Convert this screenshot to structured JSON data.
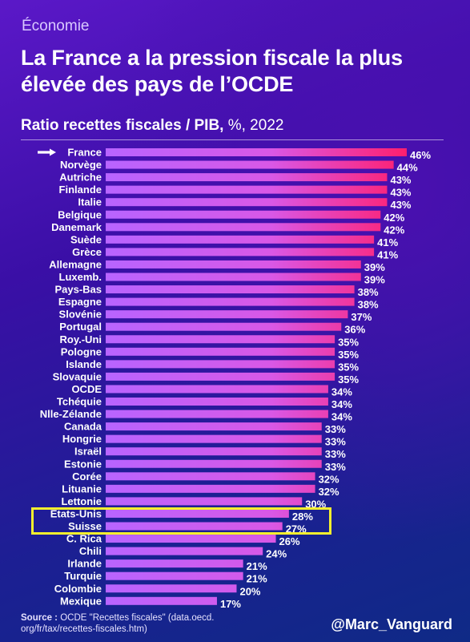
{
  "header": {
    "category": "Économie",
    "title": "La France a la pression fiscale la plus élevée des pays de l’OCDE",
    "subtitle_bold": "Ratio recettes fiscales / PIB,",
    "subtitle_rest": " %, 2022"
  },
  "footer": {
    "source_label": "Source :",
    "source_text": " OCDE \"Recettes fiscales\" (data.oecd. org/fr/tax/recettes-fiscales.htm)",
    "handle": "@Marc_Vanguard"
  },
  "colors": {
    "bar_start": "#b864ff",
    "bar_end": "#ff1f6e",
    "highlight": "#f5ef2e"
  },
  "icons": {
    "arrow": "right-arrow-icon"
  },
  "chart_data": {
    "type": "bar",
    "orientation": "horizontal",
    "title": "Ratio recettes fiscales / PIB, %, 2022",
    "unit": "%",
    "highlighted_first": "France",
    "highlighted_boxed": [
      "États-Unis",
      "Suisse"
    ],
    "categories": [
      "France",
      "Norvège",
      "Autriche",
      "Finlande",
      "Italie",
      "Belgique",
      "Danemark",
      "Suède",
      "Grèce",
      "Allemagne",
      "Luxemb.",
      "Pays-Bas",
      "Espagne",
      "Slovénie",
      "Portugal",
      "Roy.-Uni",
      "Pologne",
      "Islande",
      "Slovaquie",
      "OCDE",
      "Tchéquie",
      "Nlle-Zélande",
      "Canada",
      "Hongrie",
      "Israël",
      "Estonie",
      "Corée",
      "Lituanie",
      "Lettonie",
      "États-Unis",
      "Suisse",
      "C. Rica",
      "Chili",
      "Irlande",
      "Turquie",
      "Colombie",
      "Mexique"
    ],
    "values": [
      46,
      44,
      43,
      43,
      43,
      42,
      42,
      41,
      41,
      39,
      39,
      38,
      38,
      37,
      36,
      35,
      35,
      35,
      35,
      34,
      34,
      34,
      33,
      33,
      33,
      33,
      32,
      32,
      30,
      28,
      27,
      26,
      24,
      21,
      21,
      20,
      17
    ],
    "value_labels": [
      "46%",
      "44%",
      "43%",
      "43%",
      "43%",
      "42%",
      "42%",
      "41%",
      "41%",
      "39%",
      "39%",
      "38%",
      "38%",
      "37%",
      "36%",
      "35%",
      "35%",
      "35%",
      "35%",
      "34%",
      "34%",
      "34%",
      "33%",
      "33%",
      "33%",
      "33%",
      "32%",
      "32%",
      "30%",
      "28%",
      "27%",
      "26%",
      "24%",
      "21%",
      "21%",
      "20%",
      "17%"
    ],
    "xlim": [
      0,
      46
    ]
  }
}
